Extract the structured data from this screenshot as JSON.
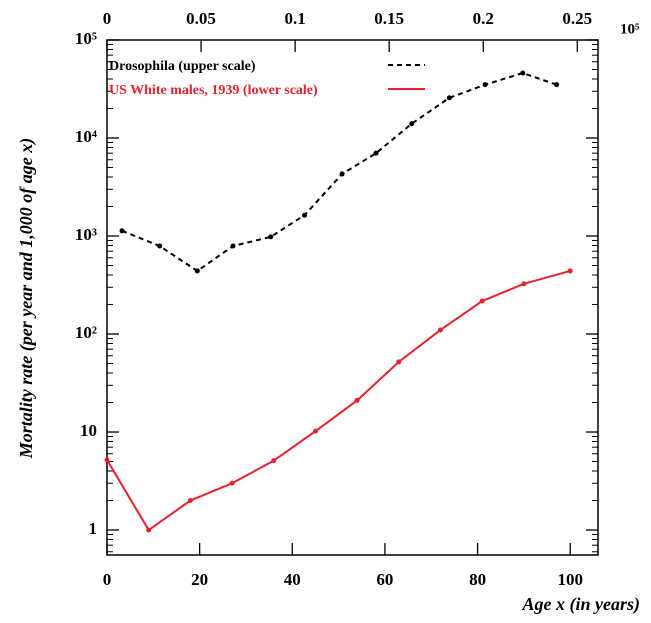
{
  "chart_data": {
    "type": "line",
    "y_label": "Mortality rate (per year and 1,000 of age x)",
    "x_label": "Age x (in years)",
    "top_axis_note": "10⁵",
    "y_scale": "log",
    "xlim": [
      0,
      106
    ],
    "xticks": [
      0,
      20,
      40,
      60,
      80,
      100
    ],
    "x2lim": [
      0,
      0.261
    ],
    "x2ticks": [
      0,
      0.05,
      0.1,
      0.15,
      0.2,
      0.25
    ],
    "ylim": [
      0.556,
      100000
    ],
    "yticks": [
      {
        "value": 1,
        "label": "1"
      },
      {
        "value": 10,
        "label": "10"
      },
      {
        "value": 100,
        "label": "10²"
      },
      {
        "value": 1000,
        "label": "10³"
      },
      {
        "value": 10000,
        "label": "10⁴"
      },
      {
        "value": 100000,
        "label": "10⁵"
      }
    ],
    "legend": "top-left",
    "series": [
      {
        "name": "Drosophila (upper scale)",
        "color": "#000000",
        "dash": true,
        "axis": "x2",
        "x": [
          0.008,
          0.028,
          0.048,
          0.067,
          0.087,
          0.105,
          0.125,
          0.143,
          0.162,
          0.182,
          0.201,
          0.221,
          0.239
        ],
        "values": [
          1130,
          790,
          440,
          790,
          980,
          1630,
          4300,
          7000,
          14000,
          25700,
          35000,
          46000,
          35000
        ]
      },
      {
        "name": "US White males, 1939 (lower scale)",
        "color": "#e8212e",
        "dash": false,
        "x": [
          0,
          9,
          18,
          27,
          36,
          45,
          54,
          63,
          72,
          81,
          90,
          100
        ],
        "values": [
          5.2,
          1,
          2,
          3,
          5.1,
          10.2,
          21,
          52,
          110,
          217,
          325,
          440
        ]
      }
    ]
  }
}
